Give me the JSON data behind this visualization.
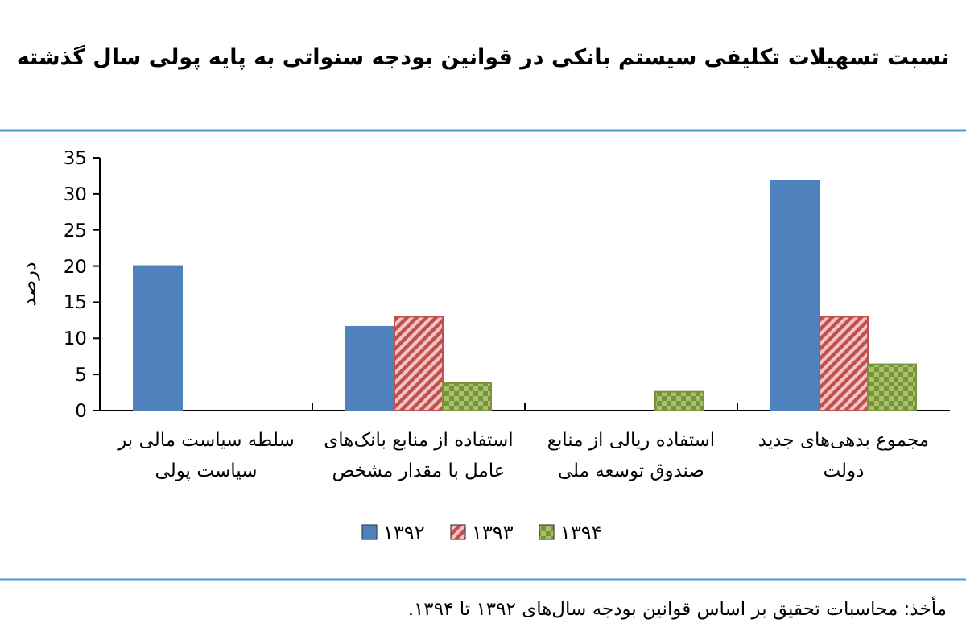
{
  "chart_data": {
    "type": "bar",
    "title": "نسبت تسهیلات تکلیفی سیستم بانکی در قوانین بودجه سنواتی به پایه پولی سال گذشته",
    "ylabel": "درصد",
    "categories": [
      "سلطه سیاست مالی بر سیاست پولی",
      "استفاده از منابع بانک‌های عامل با مقدار مشخص",
      "استفاده ریالی از منابع صندوق توسعه ملی",
      "مجموع بدهی‌های جدید دولت"
    ],
    "series": [
      {
        "name": "۱۳۹۲",
        "color": "#4f81bd",
        "values": [
          20,
          11.6,
          null,
          31.8
        ]
      },
      {
        "name": "۱۳۹۳",
        "color": "#c0504d",
        "values": [
          null,
          13,
          null,
          13
        ]
      },
      {
        "name": "۱۳۹۴",
        "color": "#77933c",
        "values": [
          null,
          3.8,
          2.6,
          6.4
        ]
      }
    ],
    "ylim": [
      0,
      35
    ],
    "yticks": [
      0,
      5,
      10,
      15,
      20,
      25,
      30,
      35
    ],
    "grid": false,
    "legend": "bottom",
    "annotations": [
      "مأخذ: محاسبات تحقیق بر اساس قوانین بودجه سال‌های ۱۳۹۲ تا ۱۳۹۴."
    ]
  }
}
